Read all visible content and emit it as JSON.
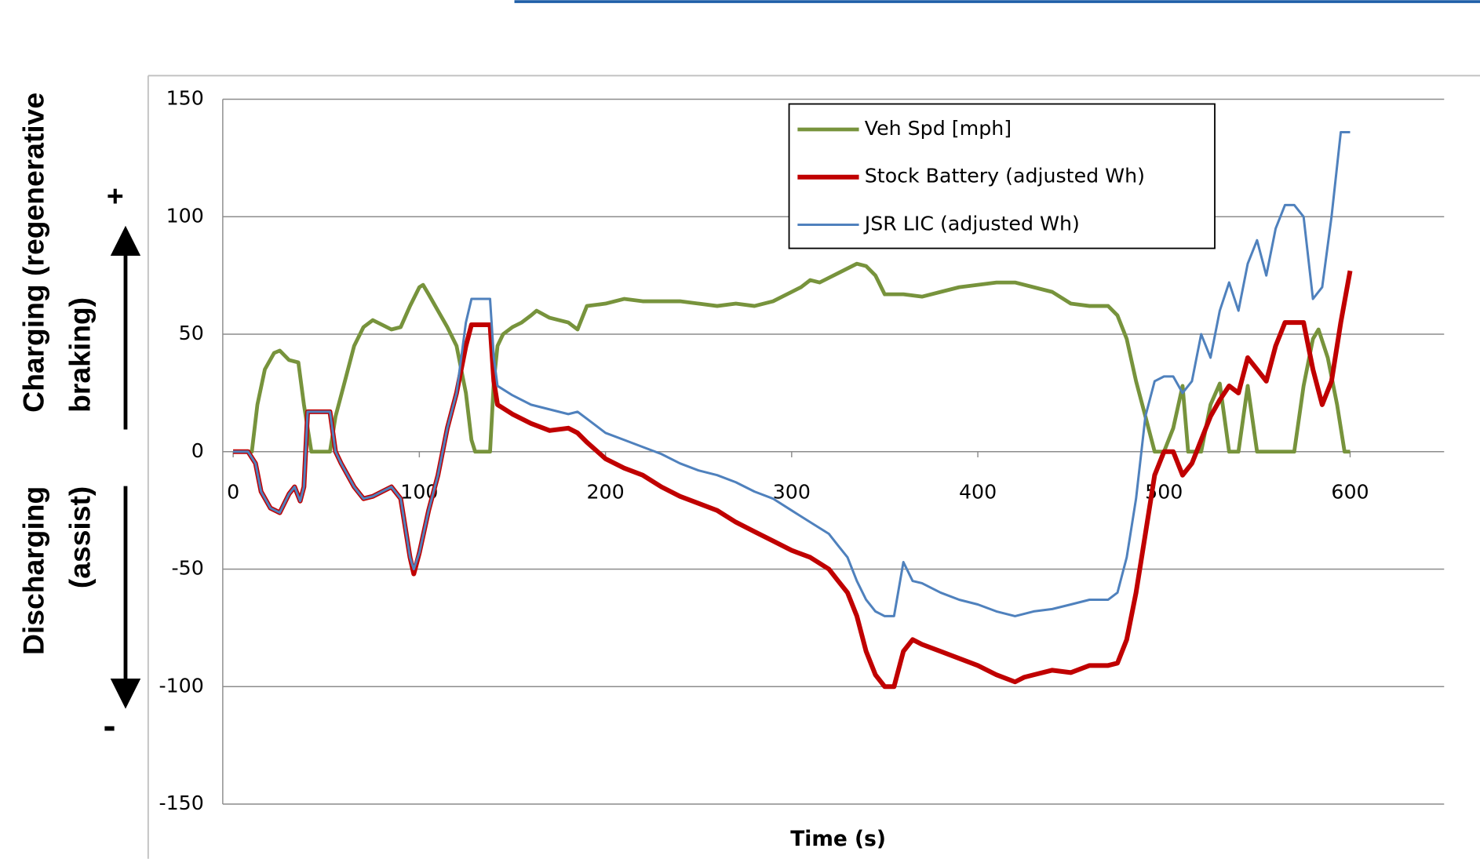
{
  "chart_data": {
    "type": "line",
    "x_label": "Time (s)",
    "annotations": [
      "Charging (regenerative",
      "braking)",
      "+",
      "Discharging",
      "(assist)",
      "-"
    ],
    "xlim": [
      -5.6,
      650.5
    ],
    "xticks": [
      0,
      100,
      200,
      300,
      400,
      500,
      600
    ],
    "ylim": [
      -150,
      150
    ],
    "yticks": [
      -150,
      -100,
      -50,
      0,
      50,
      100,
      150
    ],
    "grid": true,
    "legend": "top right",
    "series": [
      {
        "name": "Veh Spd [mph]",
        "color": "#77933c",
        "x": [
          0,
          5,
          10,
          13,
          17,
          22,
          25,
          30,
          35,
          38,
          42,
          45,
          50,
          52,
          55,
          60,
          65,
          70,
          75,
          80,
          85,
          90,
          95,
          100,
          102,
          105,
          110,
          115,
          120,
          125,
          128,
          130,
          135,
          138,
          140,
          142,
          145,
          150,
          155,
          160,
          163,
          170,
          175,
          180,
          185,
          190,
          200,
          210,
          220,
          230,
          240,
          250,
          260,
          270,
          280,
          290,
          300,
          305,
          310,
          315,
          320,
          325,
          330,
          335,
          340,
          345,
          350,
          360,
          370,
          380,
          390,
          400,
          410,
          420,
          430,
          440,
          450,
          460,
          470,
          475,
          480,
          485,
          490,
          495,
          500,
          505,
          510,
          513,
          520,
          525,
          530,
          535,
          540,
          545,
          550,
          555,
          560,
          565,
          570,
          575,
          580,
          583,
          588,
          593,
          597,
          600
        ],
        "values": [
          0,
          0,
          0,
          20,
          35,
          42,
          43,
          39,
          38,
          20,
          0,
          0,
          0,
          0,
          15,
          30,
          45,
          53,
          56,
          54,
          52,
          53,
          62,
          70,
          71,
          67,
          60,
          53,
          45,
          25,
          5,
          0,
          0,
          0,
          30,
          45,
          50,
          53,
          55,
          58,
          60,
          57,
          56,
          55,
          52,
          62,
          63,
          65,
          64,
          64,
          64,
          63,
          62,
          63,
          62,
          64,
          68,
          70,
          73,
          72,
          74,
          76,
          78,
          80,
          79,
          75,
          67,
          67,
          66,
          68,
          70,
          71,
          72,
          72,
          70,
          68,
          63,
          62,
          62,
          58,
          48,
          30,
          15,
          0,
          0,
          10,
          28,
          0,
          0,
          20,
          29,
          0,
          0,
          28,
          0,
          0,
          0,
          0,
          0,
          28,
          48,
          52,
          40,
          20,
          0,
          0
        ]
      },
      {
        "name": "Stock Battery (adjusted Wh)",
        "color": "#c00000",
        "x": [
          0,
          8,
          12,
          15,
          20,
          25,
          30,
          33,
          36,
          38,
          40,
          48,
          52,
          55,
          58,
          65,
          70,
          75,
          80,
          85,
          90,
          95,
          97,
          100,
          105,
          110,
          115,
          120,
          125,
          128,
          135,
          138,
          140,
          142,
          150,
          160,
          170,
          180,
          185,
          190,
          200,
          210,
          220,
          230,
          240,
          250,
          260,
          270,
          280,
          290,
          300,
          310,
          320,
          325,
          330,
          335,
          340,
          345,
          350,
          355,
          360,
          365,
          370,
          380,
          390,
          400,
          410,
          420,
          425,
          430,
          440,
          450,
          460,
          470,
          475,
          480,
          485,
          490,
          495,
          500,
          505,
          510,
          515,
          520,
          525,
          530,
          535,
          540,
          545,
          550,
          555,
          560,
          565,
          570,
          575,
          580,
          585,
          590,
          595,
          600
        ],
        "values": [
          0,
          0,
          -5,
          -17,
          -24,
          -26,
          -18,
          -15,
          -21,
          -15,
          17,
          17,
          17,
          0,
          -5,
          -15,
          -20,
          -19,
          -17,
          -15,
          -20,
          -45,
          -52,
          -43,
          -25,
          -10,
          10,
          25,
          45,
          54,
          54,
          54,
          30,
          20,
          16,
          12,
          9,
          10,
          8,
          4,
          -3,
          -7,
          -10,
          -15,
          -19,
          -22,
          -25,
          -30,
          -34,
          -38,
          -42,
          -45,
          -50,
          -55,
          -60,
          -70,
          -85,
          -95,
          -100,
          -100,
          -85,
          -80,
          -82,
          -85,
          -88,
          -91,
          -95,
          -98,
          -96,
          -95,
          -93,
          -94,
          -91,
          -91,
          -90,
          -80,
          -60,
          -35,
          -10,
          0,
          0,
          -10,
          -5,
          5,
          15,
          22,
          28,
          25,
          40,
          35,
          30,
          45,
          55,
          55,
          55,
          35,
          20,
          30,
          55,
          77
        ]
      },
      {
        "name": "JSR LIC (adjusted Wh)",
        "color": "#4f81bd",
        "x": [
          0,
          8,
          12,
          15,
          20,
          25,
          30,
          33,
          36,
          38,
          40,
          48,
          52,
          55,
          58,
          65,
          70,
          75,
          80,
          85,
          90,
          95,
          97,
          100,
          105,
          110,
          115,
          120,
          125,
          128,
          135,
          138,
          140,
          142,
          150,
          160,
          170,
          180,
          185,
          190,
          200,
          210,
          220,
          230,
          240,
          250,
          260,
          270,
          280,
          290,
          300,
          310,
          320,
          325,
          330,
          335,
          340,
          345,
          350,
          355,
          360,
          365,
          370,
          380,
          390,
          400,
          410,
          420,
          425,
          430,
          440,
          450,
          460,
          470,
          475,
          480,
          485,
          490,
          495,
          500,
          505,
          510,
          515,
          520,
          525,
          530,
          535,
          540,
          545,
          550,
          555,
          560,
          565,
          570,
          575,
          580,
          585,
          590,
          595,
          600
        ],
        "values": [
          0,
          0,
          -5,
          -17,
          -24,
          -26,
          -18,
          -15,
          -21,
          -15,
          17,
          17,
          17,
          0,
          -5,
          -15,
          -20,
          -19,
          -17,
          -15,
          -20,
          -45,
          -50,
          -43,
          -25,
          -10,
          10,
          25,
          55,
          65,
          65,
          65,
          40,
          28,
          24,
          20,
          18,
          16,
          17,
          14,
          8,
          5,
          2,
          -1,
          -5,
          -8,
          -10,
          -13,
          -17,
          -20,
          -25,
          -30,
          -35,
          -40,
          -45,
          -55,
          -63,
          -68,
          -70,
          -70,
          -47,
          -55,
          -56,
          -60,
          -63,
          -65,
          -68,
          -70,
          -69,
          -68,
          -67,
          -65,
          -63,
          -63,
          -60,
          -45,
          -20,
          15,
          30,
          32,
          32,
          25,
          30,
          50,
          40,
          60,
          72,
          60,
          80,
          90,
          75,
          95,
          105,
          105,
          100,
          65,
          70,
          100,
          136,
          136
        ]
      }
    ]
  }
}
